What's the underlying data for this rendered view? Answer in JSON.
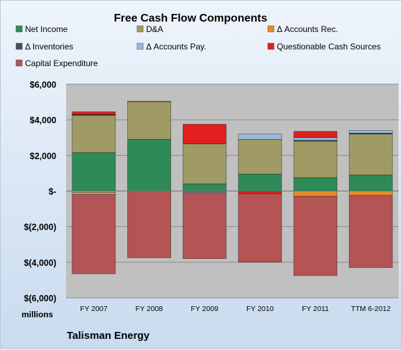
{
  "chart_data": {
    "type": "bar",
    "stacked": true,
    "title": "Free Cash Flow Components",
    "categories": [
      "FY 2007",
      "FY 2008",
      "FY 2009",
      "FY 2010",
      "FY 2011",
      "TTM 6-2012"
    ],
    "y_ticks": [
      "$6,000",
      "$4,000",
      "$2,000",
      "$-",
      "$(2,000)",
      "$(4,000)",
      "$(6,000)"
    ],
    "ylim": [
      -6000,
      6000
    ],
    "ylabel": "millions",
    "grid": true,
    "legend_position": "top",
    "series": [
      {
        "name": "Net Income",
        "color": "#2e8b57",
        "values": [
          2150,
          2900,
          400,
          950,
          750,
          900
        ]
      },
      {
        "name": "D&A",
        "color": "#a09a64",
        "values": [
          2100,
          2100,
          2250,
          1950,
          2050,
          2300
        ]
      },
      {
        "name": "Δ Accounts Rec.",
        "color": "#e88a2a",
        "values": [
          -100,
          50,
          -50,
          0,
          -300,
          -250
        ]
      },
      {
        "name": "Δ Inventories",
        "color": "#3b5068",
        "values": [
          50,
          0,
          0,
          0,
          50,
          50
        ]
      },
      {
        "name": "Δ Accounts Pay.",
        "color": "#9ab9dc",
        "values": [
          -100,
          0,
          -50,
          300,
          150,
          150
        ]
      },
      {
        "name": "Questionable Cash Sources",
        "color": "#e02020",
        "values": [
          150,
          0,
          1100,
          -150,
          350,
          0
        ]
      },
      {
        "name": "Capital Expenditure",
        "color": "#b45454",
        "values": [
          -4450,
          -3750,
          -3700,
          -3850,
          -4450,
          -4050
        ]
      }
    ]
  },
  "footer": {
    "unit_label": "millions",
    "company": "Talisman Energy"
  }
}
